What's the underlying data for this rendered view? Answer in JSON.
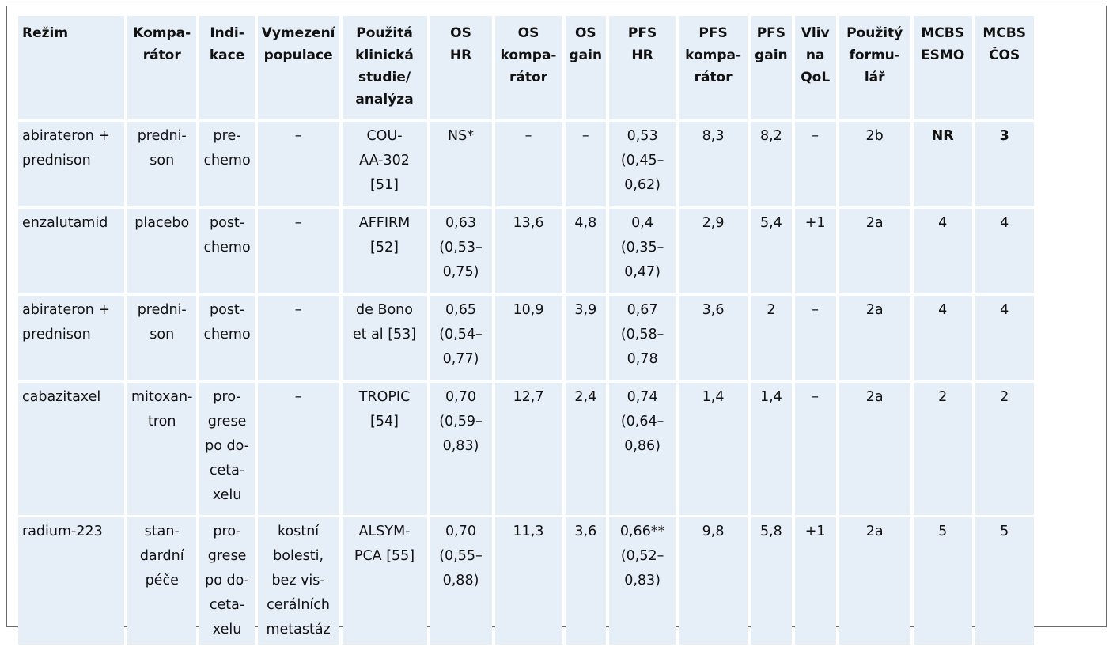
{
  "columns": [
    [
      "Režim"
    ],
    [
      "Kompa-",
      "rátor"
    ],
    [
      "Indi-",
      "kace"
    ],
    [
      "Vymezení",
      "populace"
    ],
    [
      "Použitá",
      "klinická",
      "studie/",
      "analýza"
    ],
    [
      "OS",
      "HR"
    ],
    [
      "OS",
      "kompa-",
      "rátor"
    ],
    [
      "OS",
      "gain"
    ],
    [
      "PFS",
      "HR"
    ],
    [
      "PFS",
      "kompa-",
      "rátor"
    ],
    [
      "PFS",
      "gain"
    ],
    [
      "Vliv",
      "na",
      "QoL"
    ],
    [
      "Použitý",
      "formu-",
      "lář"
    ],
    [
      "MCBS",
      "ESMO"
    ],
    [
      "MCBS",
      "ČOS"
    ]
  ],
  "rows": [
    [
      [
        "abirateron +",
        "prednison"
      ],
      [
        "predni-",
        "son"
      ],
      [
        "pre-",
        "chemo"
      ],
      [
        "–"
      ],
      [
        "COU-",
        "AA-302",
        "[51]"
      ],
      [
        "NS*"
      ],
      [
        "–"
      ],
      [
        "–"
      ],
      [
        "0,53",
        "(0,45–",
        "0,62)"
      ],
      [
        "8,3"
      ],
      [
        "8,2"
      ],
      [
        "–"
      ],
      [
        "2b"
      ],
      [
        "NR"
      ],
      [
        "3"
      ]
    ],
    [
      [
        "enzalutamid"
      ],
      [
        "placebo"
      ],
      [
        "post-",
        "chemo"
      ],
      [
        "–"
      ],
      [
        "AFFIRM",
        "[52]"
      ],
      [
        "0,63",
        "(0,53–",
        "0,75)"
      ],
      [
        "13,6"
      ],
      [
        "4,8"
      ],
      [
        "0,4",
        "(0,35–",
        "0,47)"
      ],
      [
        "2,9"
      ],
      [
        "5,4"
      ],
      [
        "+1"
      ],
      [
        "2a"
      ],
      [
        "4"
      ],
      [
        "4"
      ]
    ],
    [
      [
        "abirateron +",
        "prednison"
      ],
      [
        "predni-",
        "son"
      ],
      [
        "post-",
        "chemo"
      ],
      [
        "–"
      ],
      [
        "de Bono",
        "et al [53]"
      ],
      [
        "0,65",
        "(0,54–",
        "0,77)"
      ],
      [
        "10,9"
      ],
      [
        "3,9"
      ],
      [
        "0,67",
        "(0,58–",
        "0,78"
      ],
      [
        "3,6"
      ],
      [
        "2"
      ],
      [
        "–"
      ],
      [
        "2a"
      ],
      [
        "4"
      ],
      [
        "4"
      ]
    ],
    [
      [
        "cabazitaxel"
      ],
      [
        "mitoxan-",
        "tron"
      ],
      [
        "pro-",
        "grese",
        "po do-",
        "ceta-",
        "xelu"
      ],
      [
        "–"
      ],
      [
        "TROPIC",
        "[54]"
      ],
      [
        "0,70",
        "(0,59–",
        "0,83)"
      ],
      [
        "12,7"
      ],
      [
        "2,4"
      ],
      [
        "0,74",
        "(0,64–",
        "0,86)"
      ],
      [
        "1,4"
      ],
      [
        "1,4"
      ],
      [
        "–"
      ],
      [
        "2a"
      ],
      [
        "2"
      ],
      [
        "2"
      ]
    ],
    [
      [
        "radium-223"
      ],
      [
        "stan-",
        "dardní",
        "péče"
      ],
      [
        "pro-",
        "grese",
        "po do-",
        "ceta-",
        "xelu"
      ],
      [
        "kostní",
        "bolesti,",
        "bez vis-",
        "cerálních",
        "metastáz"
      ],
      [
        "ALSYM-",
        "PCA [55]"
      ],
      [
        "0,70",
        "(0,55–",
        "0,88)"
      ],
      [
        "11,3"
      ],
      [
        "3,6"
      ],
      [
        "0,66**",
        "(0,52–",
        "0,83)"
      ],
      [
        "9,8"
      ],
      [
        "5,8"
      ],
      [
        "+1"
      ],
      [
        "2a"
      ],
      [
        "5"
      ],
      [
        "5"
      ]
    ]
  ]
}
